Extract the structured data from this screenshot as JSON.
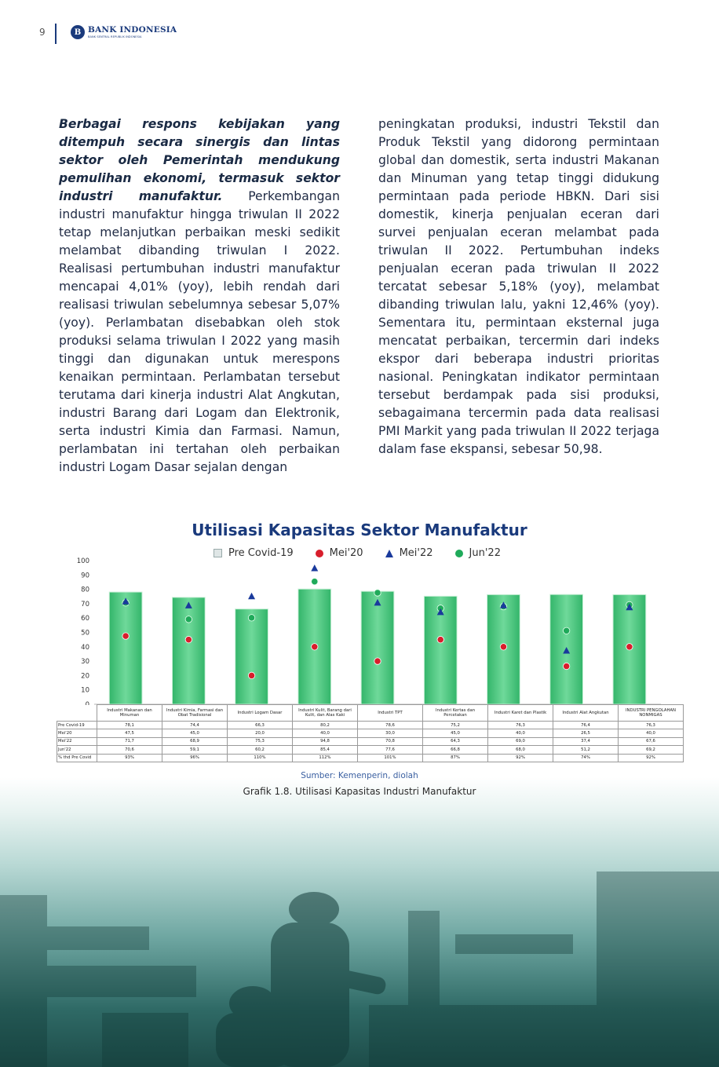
{
  "header": {
    "page_number": "9",
    "logo_name": "BANK INDONESIA",
    "logo_sub": "BANK SENTRAL REPUBLIK INDONESIA"
  },
  "body": {
    "left_lead": "Berbagai respons kebijakan yang ditempuh secara sinergis dan lintas sektor oleh Pemerintah mendukung pemulihan ekonomi, termasuk sektor industri manufaktur.",
    "left_text": " Perkembangan industri manufaktur hingga triwulan II 2022 tetap melanjutkan perbaikan meski sedikit melambat dibanding triwulan I 2022. Realisasi pertumbuhan industri manufaktur mencapai 4,01% (yoy), lebih rendah dari realisasi triwulan sebelumnya sebesar 5,07% (yoy). Perlambatan disebabkan oleh stok produksi selama triwulan I 2022 yang masih tinggi dan digunakan untuk merespons kenaikan permintaan. Perlambatan tersebut terutama dari kinerja industri Alat Angkutan, industri Barang dari Logam dan Elektronik, serta industri Kimia dan Farmasi. Namun, perlambatan ini tertahan oleh perbaikan industri Logam Dasar sejalan dengan",
    "right_text": "peningkatan produksi, industri Tekstil dan Produk Tekstil yang didorong permintaan global dan domestik, serta industri Makanan dan Minuman yang tetap tinggi didukung permintaan pada periode HBKN. Dari sisi domestik, kinerja penjualan eceran dari survei penjualan eceran melambat pada triwulan II 2022. Pertumbuhan indeks penjualan eceran pada triwulan II 2022 tercatat sebesar 5,18% (yoy), melambat dibanding triwulan lalu, yakni 12,46% (yoy). Sementara itu, permintaan eksternal juga mencatat perbaikan, tercermin dari indeks ekspor dari beberapa industri prioritas nasional. Peningkatan indikator permintaan tersebut berdampak pada sisi produksi, sebagaimana tercermin pada data realisasi PMI Markit yang pada triwulan II 2022 terjaga dalam fase ekspansi, sebesar 50,98."
  },
  "chart_data": {
    "type": "bar",
    "title": "Utilisasi Kapasitas Sektor Manufaktur",
    "ylim": [
      0,
      100
    ],
    "yticks": [
      "0",
      "10",
      "20",
      "30",
      "40",
      "50",
      "60",
      "70",
      "80",
      "90",
      "100"
    ],
    "grid": false,
    "legend_position": "top",
    "categories": [
      "Industri Makanan dan Minuman",
      "Industri Kimia, Farmasi dan Obat Tradisional",
      "Industri Logam Dasar",
      "Industri Kulit, Barang dari Kulit, dan Alas Kaki",
      "Industri TPT",
      "Industri Kertas dan Percetakan",
      "Industri Karet dan Plastik",
      "Industri Alat Angkutan",
      "INDUSTRI PENGOLAHAN NONMIGAS"
    ],
    "series": [
      {
        "name": "Pre Covid-19",
        "mark": "bar",
        "color": "#4cc77e",
        "values": [
          78.1,
          74.4,
          66.3,
          80.2,
          78.6,
          75.2,
          76.3,
          76.4,
          76.3
        ],
        "labels": [
          "78,1",
          "74,4",
          "66,3",
          "80,2",
          "78,6",
          "75,2",
          "76,3",
          "76,4",
          "76,3"
        ]
      },
      {
        "name": "Mei'20",
        "mark": "dot",
        "color": "#d81e2c",
        "values": [
          47.5,
          45.0,
          20.0,
          40.0,
          30.0,
          45.0,
          40.0,
          26.5,
          40.0
        ],
        "labels": [
          "47,5",
          "45,0",
          "20,0",
          "40,0",
          "30,0",
          "45,0",
          "40,0",
          "26,5",
          "40,0"
        ]
      },
      {
        "name": "Mei'22",
        "mark": "triangle",
        "color": "#1a3a9c",
        "values": [
          71.7,
          68.9,
          75.3,
          94.8,
          70.8,
          64.3,
          69.0,
          37.4,
          67.6
        ],
        "labels": [
          "71,7",
          "68,9",
          "75,3",
          "94,8",
          "70,8",
          "64,3",
          "69,0",
          "37,4",
          "67,6"
        ]
      },
      {
        "name": "Jun'22",
        "mark": "dot",
        "color": "#1faa5a",
        "values": [
          70.6,
          59.1,
          60.2,
          85.4,
          77.6,
          66.8,
          68.0,
          51.2,
          69.2
        ],
        "labels": [
          "70,6",
          "59,1",
          "60,2",
          "85,4",
          "77,6",
          "66,8",
          "68,0",
          "51,2",
          "69,2"
        ]
      }
    ],
    "table_extra_row": {
      "name": "% thd Pre Covid",
      "values": [
        "93%",
        "96%",
        "110%",
        "112%",
        "101%",
        "87%",
        "92%",
        "74%",
        "92%"
      ]
    },
    "table_row_labels": [
      "Pre Covid-19",
      "Mei'20",
      "Mei'22",
      "Jun'22"
    ]
  },
  "chart_footer": {
    "source": "Sumber: Kemenperin, diolah",
    "caption": "Grafik 1.8. Utilisasi Kapasitas Industri Manufaktur"
  }
}
